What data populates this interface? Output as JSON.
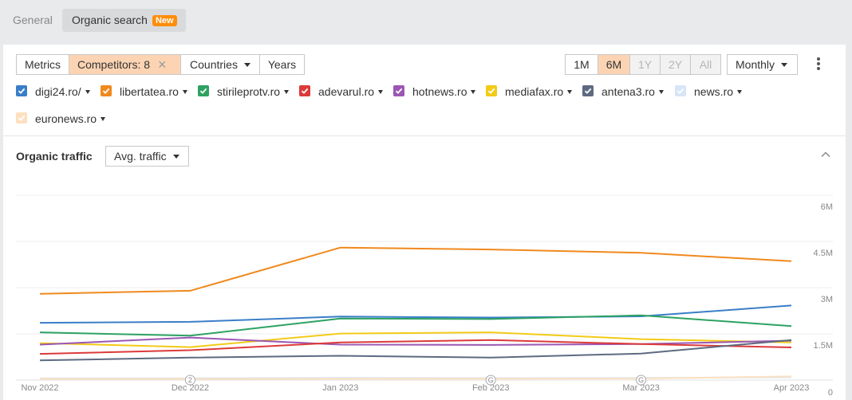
{
  "tabs": [
    {
      "label": "General"
    },
    {
      "label": "Organic search",
      "badge": "New"
    }
  ],
  "toolbar": {
    "metrics": "Metrics",
    "competitors": "Competitors: 8",
    "countries": "Countries",
    "years": "Years",
    "ranges": [
      "1M",
      "6M",
      "1Y",
      "2Y",
      "All"
    ],
    "active_range": "6M",
    "interval": "Monthly"
  },
  "competitors": [
    {
      "domain": "digi24.ro/",
      "color": "#3a7ec7",
      "checked": true
    },
    {
      "domain": "libertatea.ro",
      "color": "#f0891e",
      "checked": true
    },
    {
      "domain": "stirileprotv.ro",
      "color": "#2da262",
      "checked": true
    },
    {
      "domain": "adevarul.ro",
      "color": "#dc3a3a",
      "checked": true
    },
    {
      "domain": "hotnews.ro",
      "color": "#9b57b3",
      "checked": true
    },
    {
      "domain": "mediafax.ro",
      "color": "#f2cb17",
      "checked": true
    },
    {
      "domain": "antena3.ro",
      "color": "#5d6a80",
      "checked": true
    },
    {
      "domain": "news.ro",
      "color": "#d6e6f7",
      "checked": true
    },
    {
      "domain": "euronews.ro",
      "color": "#fde0c0",
      "checked": true
    }
  ],
  "section": {
    "title": "Organic traffic",
    "metric_select": "Avg. traffic"
  },
  "chart_data": {
    "type": "line",
    "x": [
      "Nov 2022",
      "Dec 2022",
      "Jan 2023",
      "Feb 2023",
      "Mar 2023",
      "Apr 2023"
    ],
    "y_ticks": [
      "6M",
      "4.5M",
      "3M",
      "1.5M",
      "0"
    ],
    "ylim": [
      0,
      6000000
    ],
    "annotations": [
      {
        "x": "Dec 2022",
        "label": "2"
      },
      {
        "x": "Feb 2023",
        "label": "G"
      },
      {
        "x": "Mar 2023",
        "label": "G"
      }
    ],
    "series": [
      {
        "name": "libertatea.ro",
        "color": "#f0891e",
        "values": [
          2800000,
          2900000,
          4300000,
          4240000,
          4130000,
          3860000
        ]
      },
      {
        "name": "digi24.ro/",
        "color": "#3a7ec7",
        "values": [
          1860000,
          1890000,
          2060000,
          2030000,
          2070000,
          2420000
        ]
      },
      {
        "name": "stirileprotv.ro",
        "color": "#2da262",
        "values": [
          1550000,
          1440000,
          2000000,
          1980000,
          2100000,
          1750000
        ]
      },
      {
        "name": "mediafax.ro",
        "color": "#f2cb17",
        "values": [
          1200000,
          1070000,
          1510000,
          1550000,
          1330000,
          1220000
        ]
      },
      {
        "name": "hotnews.ro",
        "color": "#9b57b3",
        "values": [
          1150000,
          1380000,
          1150000,
          1140000,
          1170000,
          1280000
        ]
      },
      {
        "name": "adevarul.ro",
        "color": "#dc3a3a",
        "values": [
          850000,
          970000,
          1220000,
          1300000,
          1170000,
          1060000
        ]
      },
      {
        "name": "antena3.ro",
        "color": "#5d6a80",
        "values": [
          640000,
          730000,
          790000,
          730000,
          860000,
          1300000
        ]
      },
      {
        "name": "news.ro",
        "color": "#d6e6f7",
        "values": [
          60000,
          60000,
          70000,
          65000,
          70000,
          90000
        ]
      },
      {
        "name": "euronews.ro",
        "color": "#fde0c0",
        "values": [
          40000,
          40000,
          45000,
          45000,
          50000,
          120000
        ]
      }
    ]
  }
}
